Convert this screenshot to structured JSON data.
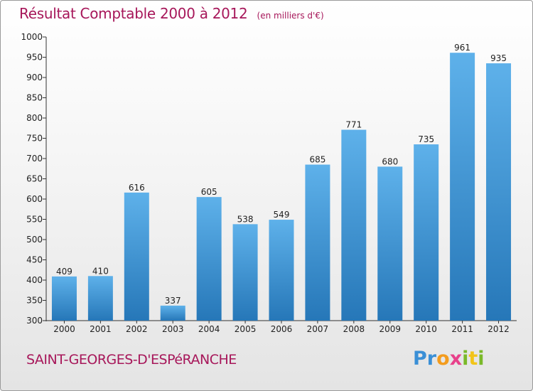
{
  "colors": {
    "title": "#a7175a",
    "bar_light": "#5eb1ea",
    "bar_dark": "#2677b8",
    "axis": "#333333",
    "grid": "#dddddd"
  },
  "header": {
    "title": "Résultat Comptable 2000 à 2012",
    "subtitle": "(en milliers d'€)"
  },
  "footer": {
    "commune": "SAINT-GEORGES-D'ESPéRANCHE",
    "brand_letters": [
      {
        "ch": "P",
        "color": "#3a8fd6"
      },
      {
        "ch": "r",
        "color": "#3a8fd6"
      },
      {
        "ch": "o",
        "color": "#f39c1e"
      },
      {
        "ch": "x",
        "color": "#e8418b"
      },
      {
        "ch": "i",
        "color": "#7ab929"
      },
      {
        "ch": "t",
        "color": "#f2c418"
      },
      {
        "ch": "i",
        "color": "#7ab929"
      }
    ]
  },
  "chart_data": {
    "type": "bar",
    "title": "Résultat Comptable 2000 à 2012",
    "subtitle": "(en milliers d'€)",
    "xlabel": "",
    "ylabel": "",
    "categories": [
      "2000",
      "2001",
      "2002",
      "2003",
      "2004",
      "2005",
      "2006",
      "2007",
      "2008",
      "2009",
      "2010",
      "2011",
      "2012"
    ],
    "values": [
      409,
      410,
      616,
      337,
      605,
      538,
      549,
      685,
      771,
      680,
      735,
      961,
      935
    ],
    "ylim": [
      300,
      1000
    ],
    "yticks": [
      300,
      350,
      400,
      450,
      500,
      550,
      600,
      650,
      700,
      750,
      800,
      850,
      900,
      950,
      1000
    ],
    "grid": false,
    "legend": "none"
  }
}
